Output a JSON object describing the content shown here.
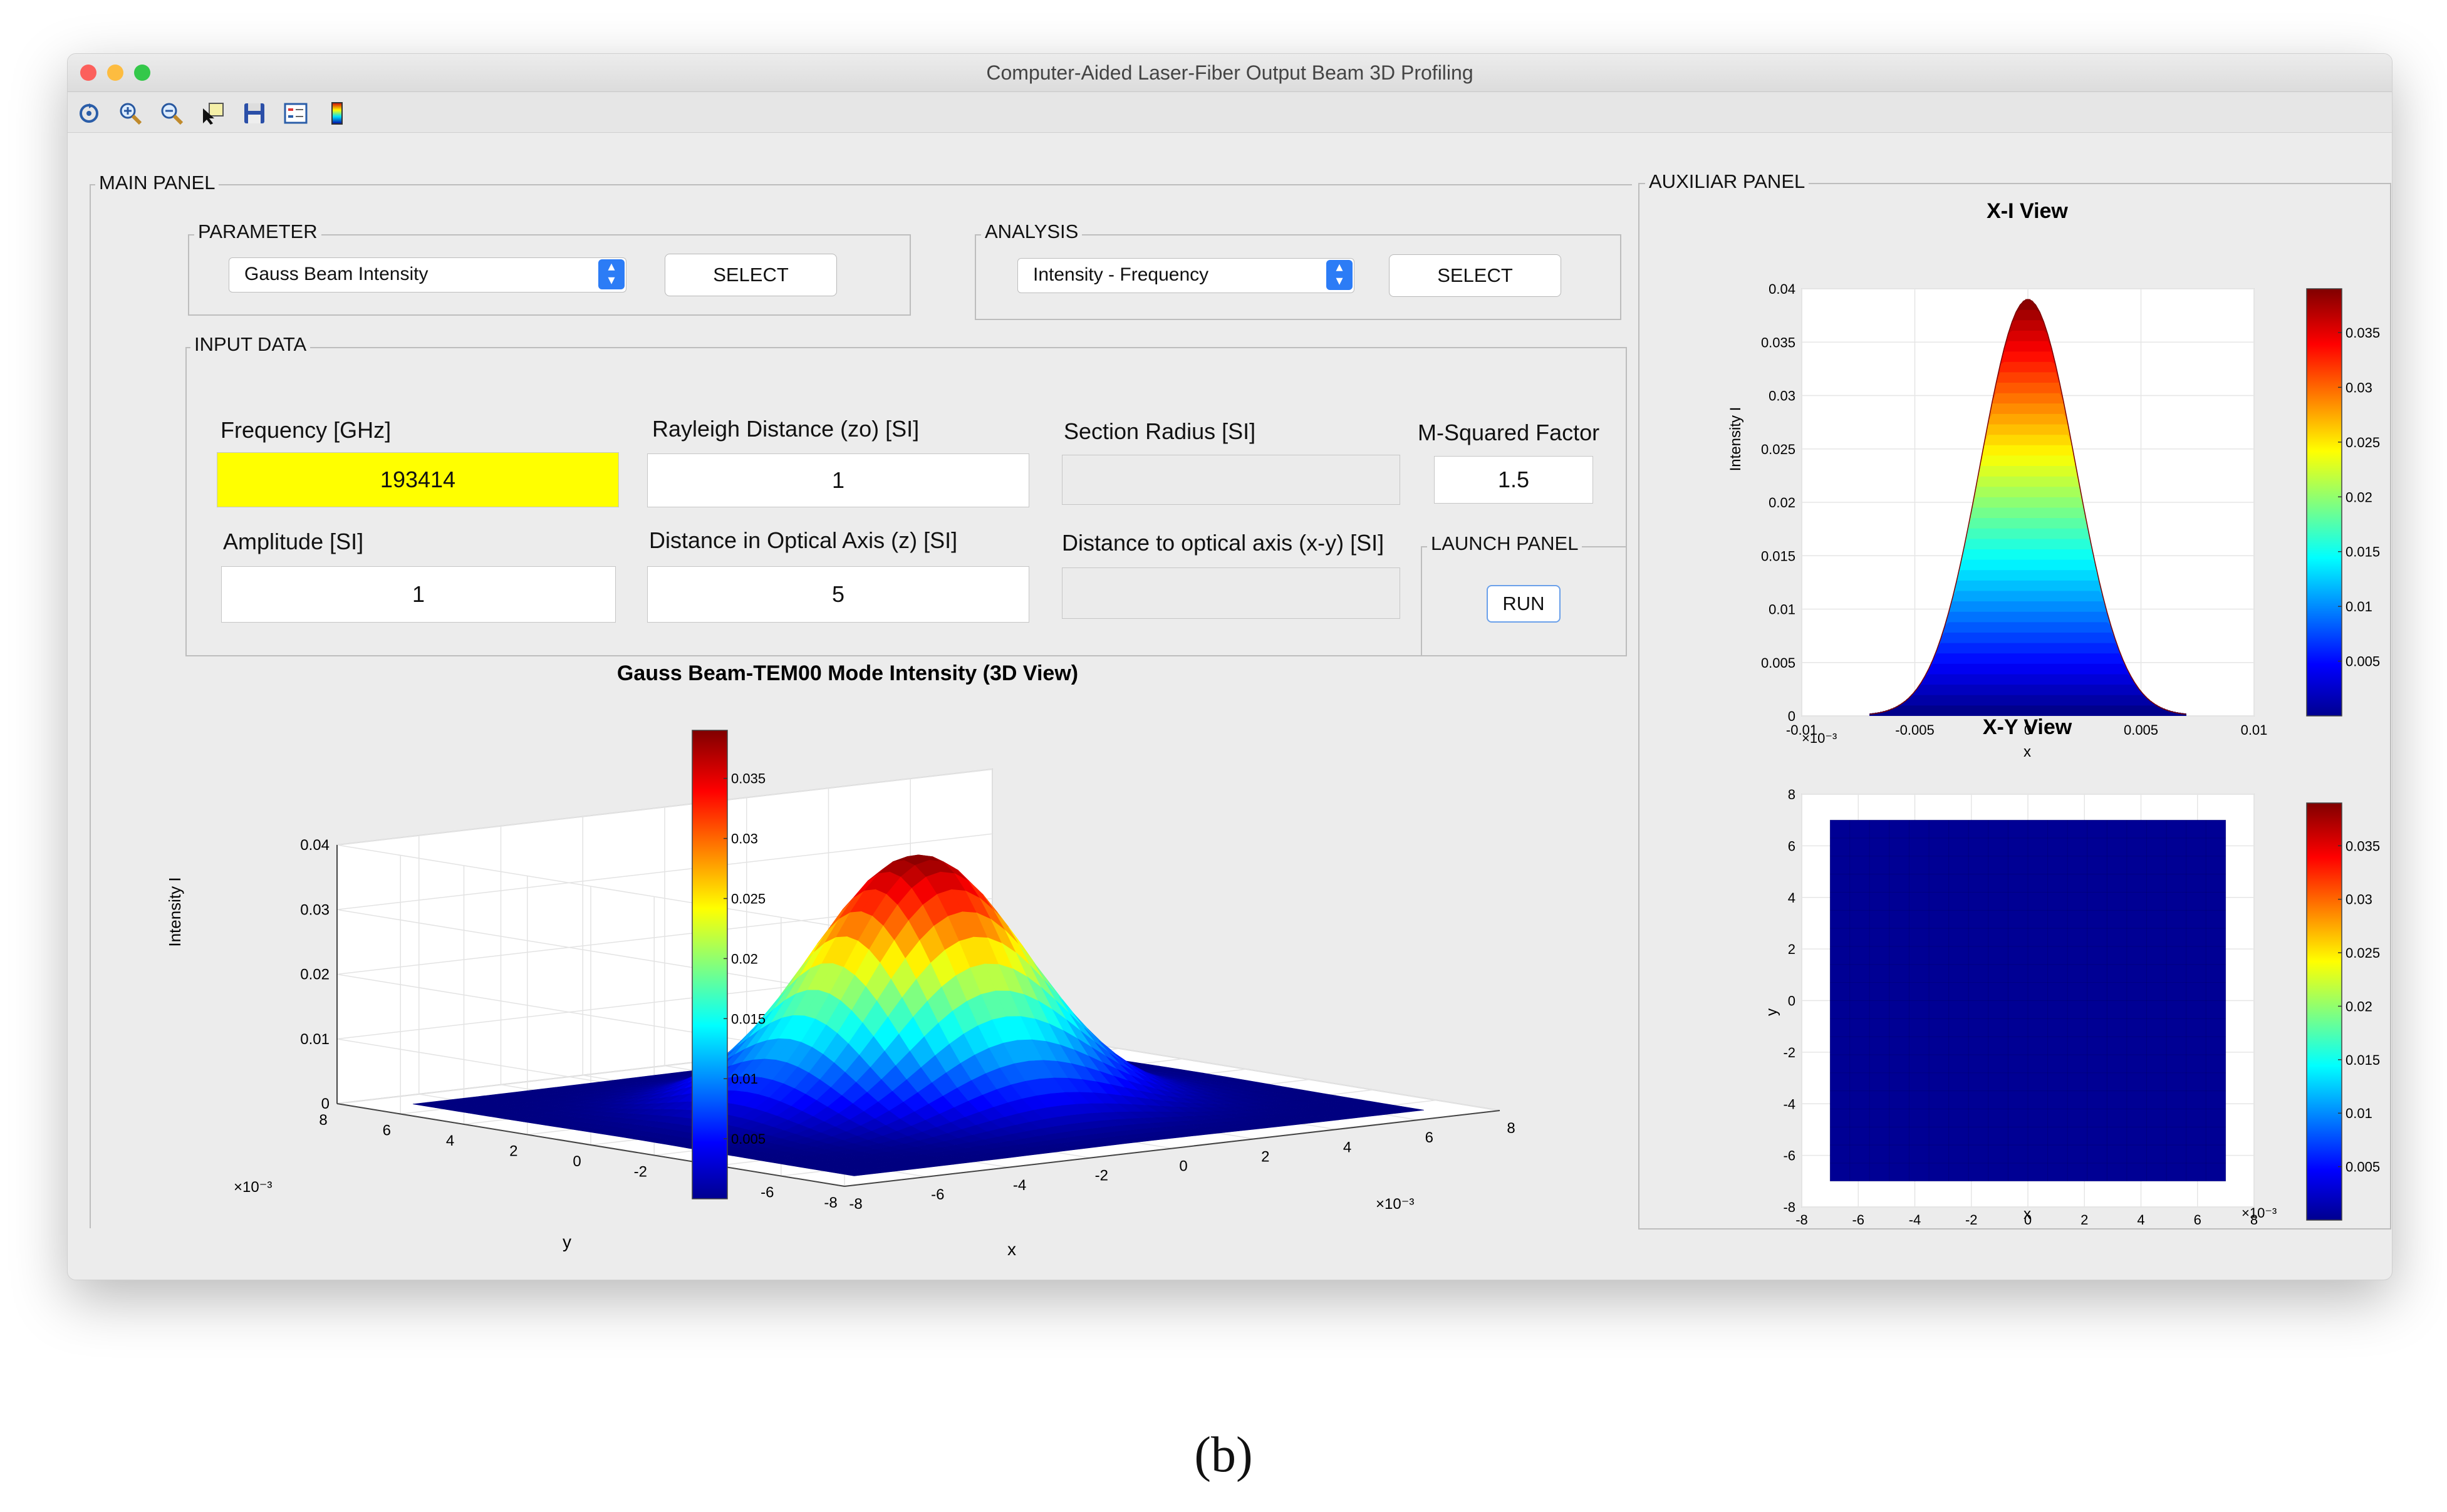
{
  "window": {
    "title": "Computer-Aided Laser-Fiber Output Beam 3D Profiling"
  },
  "toolbar": {
    "icons": [
      "rotate-icon",
      "zoom-in-icon",
      "zoom-out-icon",
      "data-cursor-icon",
      "save-icon",
      "legend-icon",
      "colorbar-icon"
    ]
  },
  "main_panel": {
    "title": "MAIN PANEL",
    "parameter": {
      "title": "PARAMETER",
      "selected": "Gauss Beam Intensity",
      "select_label": "SELECT"
    },
    "analysis": {
      "title": "ANALYSIS",
      "selected": "Intensity - Frequency",
      "select_label": "SELECT"
    },
    "input_data": {
      "title": "INPUT DATA",
      "frequency": {
        "label": "Frequency [GHz]",
        "value": "193414"
      },
      "rayleigh": {
        "label": "Rayleigh Distance (zo) [SI]",
        "value": "1"
      },
      "section_radius": {
        "label": "Section Radius [SI]",
        "value": ""
      },
      "m_squared": {
        "label": "M-Squared Factor",
        "value": "1.5"
      },
      "amplitude": {
        "label": "Amplitude [SI]",
        "value": "1"
      },
      "distance_z": {
        "label": "Distance in Optical Axis (z) [SI]",
        "value": "5"
      },
      "distance_xy": {
        "label": "Distance to optical axis (x-y) [SI]",
        "value": ""
      }
    },
    "launch": {
      "title": "LAUNCH PANEL",
      "run_label": "RUN"
    }
  },
  "auxiliar_panel": {
    "title": "AUXILIAR PANEL"
  },
  "colors": {
    "highlight": "#ffff00",
    "accent": "#2c7cf6"
  },
  "chart_data": [
    {
      "type": "surface",
      "title": "Gauss Beam-TEM00 Mode Intensity (3D View)",
      "xlabel": "x",
      "ylabel": "y",
      "zlabel": "Intensity I",
      "xlim": [
        -8,
        8
      ],
      "ylim": [
        -8,
        8
      ],
      "axis_exponent": "×10⁻³",
      "zlim": [
        0,
        0.04
      ],
      "x_ticks": [
        "-8",
        "-6",
        "-4",
        "-2",
        "0",
        "2",
        "4",
        "6",
        "8"
      ],
      "y_ticks": [
        "-8",
        "-6",
        "-4",
        "-2",
        "0",
        "2",
        "4",
        "6",
        "8"
      ],
      "z_ticks": [
        "0",
        "0.01",
        "0.02",
        "0.03",
        "0.04"
      ],
      "peak_intensity": 0.039,
      "colorbar_ticks": [
        "0.005",
        "0.01",
        "0.015",
        "0.02",
        "0.025",
        "0.03",
        "0.035"
      ],
      "grid": true
    },
    {
      "type": "line",
      "title": "X-I View",
      "xlabel": "x",
      "ylabel": "Intensity I",
      "xlim": [
        -0.01,
        0.01
      ],
      "ylim": [
        0,
        0.04
      ],
      "x_ticks": [
        "-0.01",
        "-0.005",
        "0",
        "0.005",
        "0.01"
      ],
      "y_ticks": [
        "0",
        "0.005",
        "0.01",
        "0.015",
        "0.02",
        "0.025",
        "0.03",
        "0.035",
        "0.04"
      ],
      "peak": {
        "x": 0,
        "y": 0.039
      },
      "x_support": [
        -0.007,
        0.007
      ],
      "colorbar_ticks": [
        "0.005",
        "0.01",
        "0.015",
        "0.02",
        "0.025",
        "0.03",
        "0.035"
      ],
      "grid": true
    },
    {
      "type": "heatmap",
      "title": "X-Y View",
      "xlabel": "x",
      "ylabel": "y",
      "xlim": [
        -8,
        8
      ],
      "ylim": [
        -8,
        8
      ],
      "axis_exponent": "×10⁻³",
      "data_extent": [
        -7,
        7
      ],
      "x_ticks": [
        "-8",
        "-6",
        "-4",
        "-2",
        "0",
        "2",
        "4",
        "6",
        "8"
      ],
      "y_ticks": [
        "-8",
        "-6",
        "-4",
        "-2",
        "0",
        "2",
        "4",
        "6",
        "8"
      ],
      "colorbar_ticks": [
        "0.005",
        "0.01",
        "0.015",
        "0.02",
        "0.025",
        "0.03",
        "0.035"
      ],
      "grid": true
    }
  ],
  "caption": "(b)"
}
